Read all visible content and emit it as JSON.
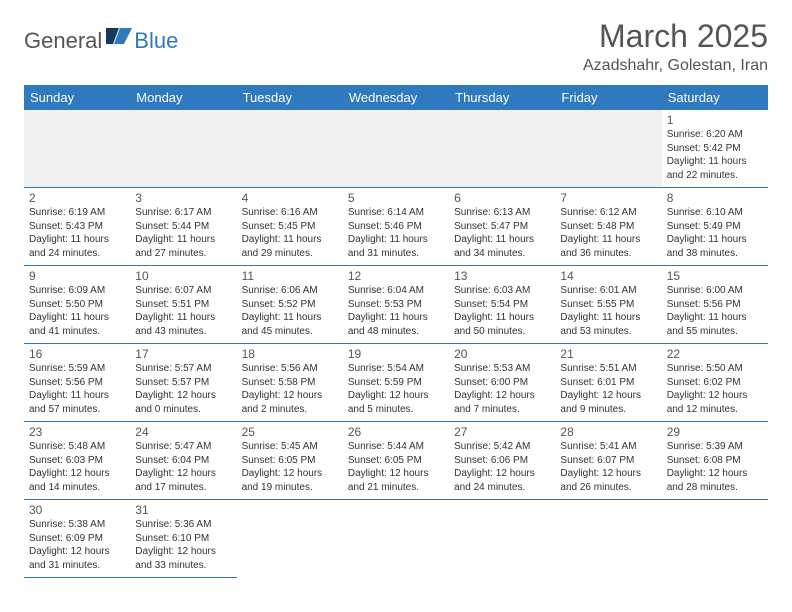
{
  "logo": {
    "text1": "General",
    "text2": "Blue",
    "icon_color": "#2f7abf"
  },
  "title": "March 2025",
  "location": "Azadshahr, Golestan, Iran",
  "colors": {
    "header_bg": "#2f7abf",
    "header_fg": "#ffffff",
    "border": "#2f7abf",
    "blank_bg": "#f0f0f0"
  },
  "dayNames": [
    "Sunday",
    "Monday",
    "Tuesday",
    "Wednesday",
    "Thursday",
    "Friday",
    "Saturday"
  ],
  "weeks": [
    [
      null,
      null,
      null,
      null,
      null,
      null,
      {
        "n": "1",
        "sr": "6:20 AM",
        "ss": "5:42 PM",
        "dl": "11 hours and 22 minutes."
      }
    ],
    [
      {
        "n": "2",
        "sr": "6:19 AM",
        "ss": "5:43 PM",
        "dl": "11 hours and 24 minutes."
      },
      {
        "n": "3",
        "sr": "6:17 AM",
        "ss": "5:44 PM",
        "dl": "11 hours and 27 minutes."
      },
      {
        "n": "4",
        "sr": "6:16 AM",
        "ss": "5:45 PM",
        "dl": "11 hours and 29 minutes."
      },
      {
        "n": "5",
        "sr": "6:14 AM",
        "ss": "5:46 PM",
        "dl": "11 hours and 31 minutes."
      },
      {
        "n": "6",
        "sr": "6:13 AM",
        "ss": "5:47 PM",
        "dl": "11 hours and 34 minutes."
      },
      {
        "n": "7",
        "sr": "6:12 AM",
        "ss": "5:48 PM",
        "dl": "11 hours and 36 minutes."
      },
      {
        "n": "8",
        "sr": "6:10 AM",
        "ss": "5:49 PM",
        "dl": "11 hours and 38 minutes."
      }
    ],
    [
      {
        "n": "9",
        "sr": "6:09 AM",
        "ss": "5:50 PM",
        "dl": "11 hours and 41 minutes."
      },
      {
        "n": "10",
        "sr": "6:07 AM",
        "ss": "5:51 PM",
        "dl": "11 hours and 43 minutes."
      },
      {
        "n": "11",
        "sr": "6:06 AM",
        "ss": "5:52 PM",
        "dl": "11 hours and 45 minutes."
      },
      {
        "n": "12",
        "sr": "6:04 AM",
        "ss": "5:53 PM",
        "dl": "11 hours and 48 minutes."
      },
      {
        "n": "13",
        "sr": "6:03 AM",
        "ss": "5:54 PM",
        "dl": "11 hours and 50 minutes."
      },
      {
        "n": "14",
        "sr": "6:01 AM",
        "ss": "5:55 PM",
        "dl": "11 hours and 53 minutes."
      },
      {
        "n": "15",
        "sr": "6:00 AM",
        "ss": "5:56 PM",
        "dl": "11 hours and 55 minutes."
      }
    ],
    [
      {
        "n": "16",
        "sr": "5:59 AM",
        "ss": "5:56 PM",
        "dl": "11 hours and 57 minutes."
      },
      {
        "n": "17",
        "sr": "5:57 AM",
        "ss": "5:57 PM",
        "dl": "12 hours and 0 minutes."
      },
      {
        "n": "18",
        "sr": "5:56 AM",
        "ss": "5:58 PM",
        "dl": "12 hours and 2 minutes."
      },
      {
        "n": "19",
        "sr": "5:54 AM",
        "ss": "5:59 PM",
        "dl": "12 hours and 5 minutes."
      },
      {
        "n": "20",
        "sr": "5:53 AM",
        "ss": "6:00 PM",
        "dl": "12 hours and 7 minutes."
      },
      {
        "n": "21",
        "sr": "5:51 AM",
        "ss": "6:01 PM",
        "dl": "12 hours and 9 minutes."
      },
      {
        "n": "22",
        "sr": "5:50 AM",
        "ss": "6:02 PM",
        "dl": "12 hours and 12 minutes."
      }
    ],
    [
      {
        "n": "23",
        "sr": "5:48 AM",
        "ss": "6:03 PM",
        "dl": "12 hours and 14 minutes."
      },
      {
        "n": "24",
        "sr": "5:47 AM",
        "ss": "6:04 PM",
        "dl": "12 hours and 17 minutes."
      },
      {
        "n": "25",
        "sr": "5:45 AM",
        "ss": "6:05 PM",
        "dl": "12 hours and 19 minutes."
      },
      {
        "n": "26",
        "sr": "5:44 AM",
        "ss": "6:05 PM",
        "dl": "12 hours and 21 minutes."
      },
      {
        "n": "27",
        "sr": "5:42 AM",
        "ss": "6:06 PM",
        "dl": "12 hours and 24 minutes."
      },
      {
        "n": "28",
        "sr": "5:41 AM",
        "ss": "6:07 PM",
        "dl": "12 hours and 26 minutes."
      },
      {
        "n": "29",
        "sr": "5:39 AM",
        "ss": "6:08 PM",
        "dl": "12 hours and 28 minutes."
      }
    ],
    [
      {
        "n": "30",
        "sr": "5:38 AM",
        "ss": "6:09 PM",
        "dl": "12 hours and 31 minutes."
      },
      {
        "n": "31",
        "sr": "5:36 AM",
        "ss": "6:10 PM",
        "dl": "12 hours and 33 minutes."
      },
      null,
      null,
      null,
      null,
      null
    ]
  ],
  "labels": {
    "sunrise": "Sunrise:",
    "sunset": "Sunset:",
    "daylight": "Daylight:"
  }
}
